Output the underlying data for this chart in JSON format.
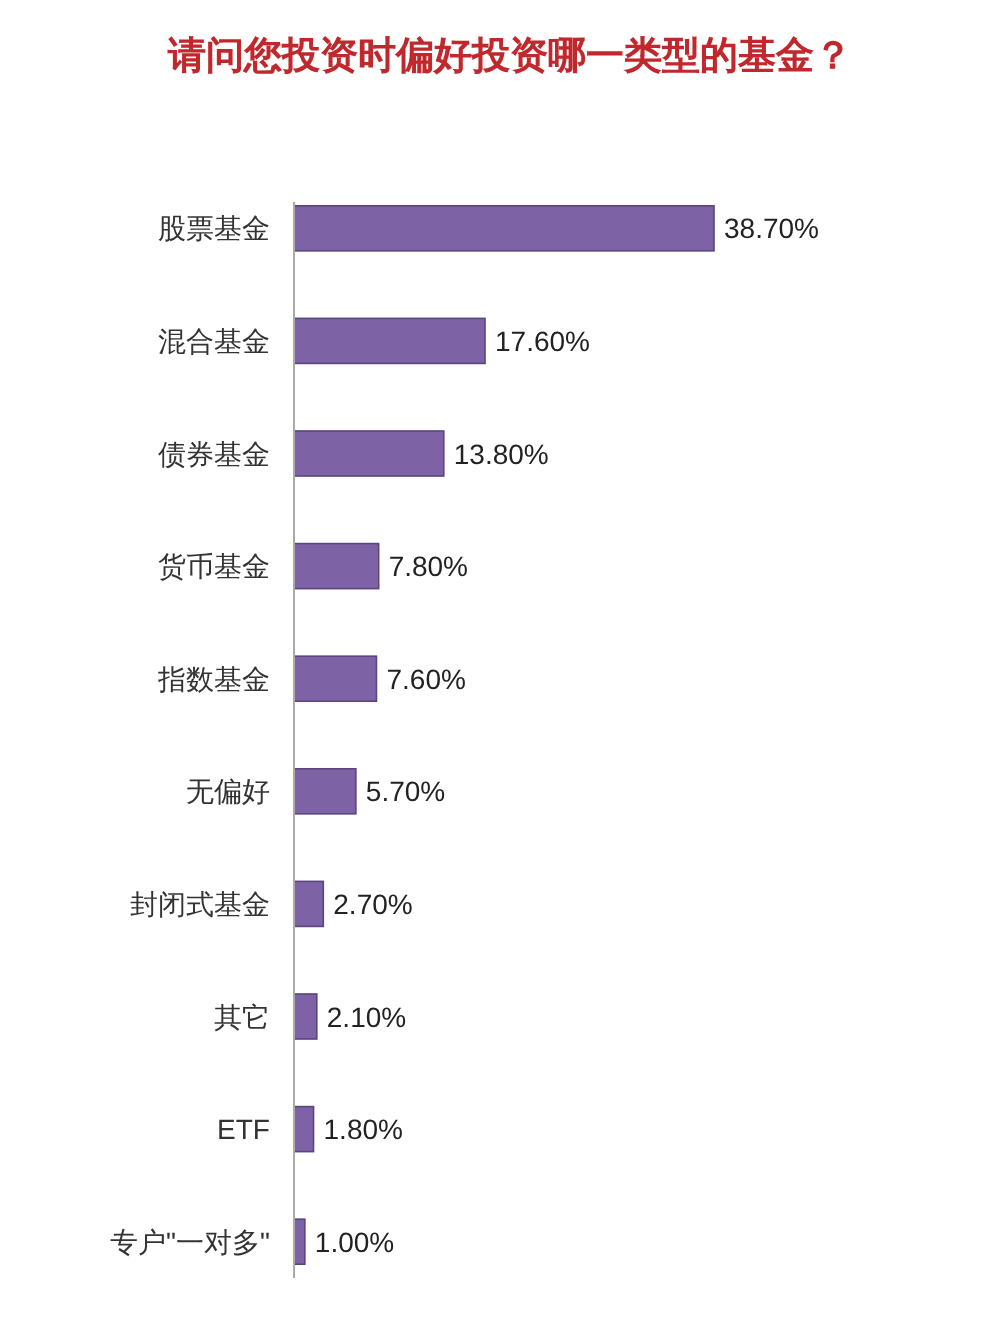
{
  "chart_data": {
    "type": "bar",
    "orientation": "horizontal",
    "title": "请问您投资时偏好投资哪一类型的基金？",
    "categories": [
      "股票基金",
      "混合基金",
      "债券基金",
      "货币基金",
      "指数基金",
      "无偏好",
      "封闭式基金",
      "其它",
      "ETF",
      "专户\"一对多\""
    ],
    "values": [
      38.7,
      17.6,
      13.8,
      7.8,
      7.6,
      5.7,
      2.7,
      2.1,
      1.8,
      1.0
    ],
    "value_labels": [
      "38.70%",
      "17.60%",
      "13.80%",
      "7.80%",
      "7.60%",
      "5.70%",
      "2.70%",
      "2.10%",
      "1.80%",
      "1.00%"
    ],
    "color": "#7e62a6",
    "tick_labels": "y"
  }
}
